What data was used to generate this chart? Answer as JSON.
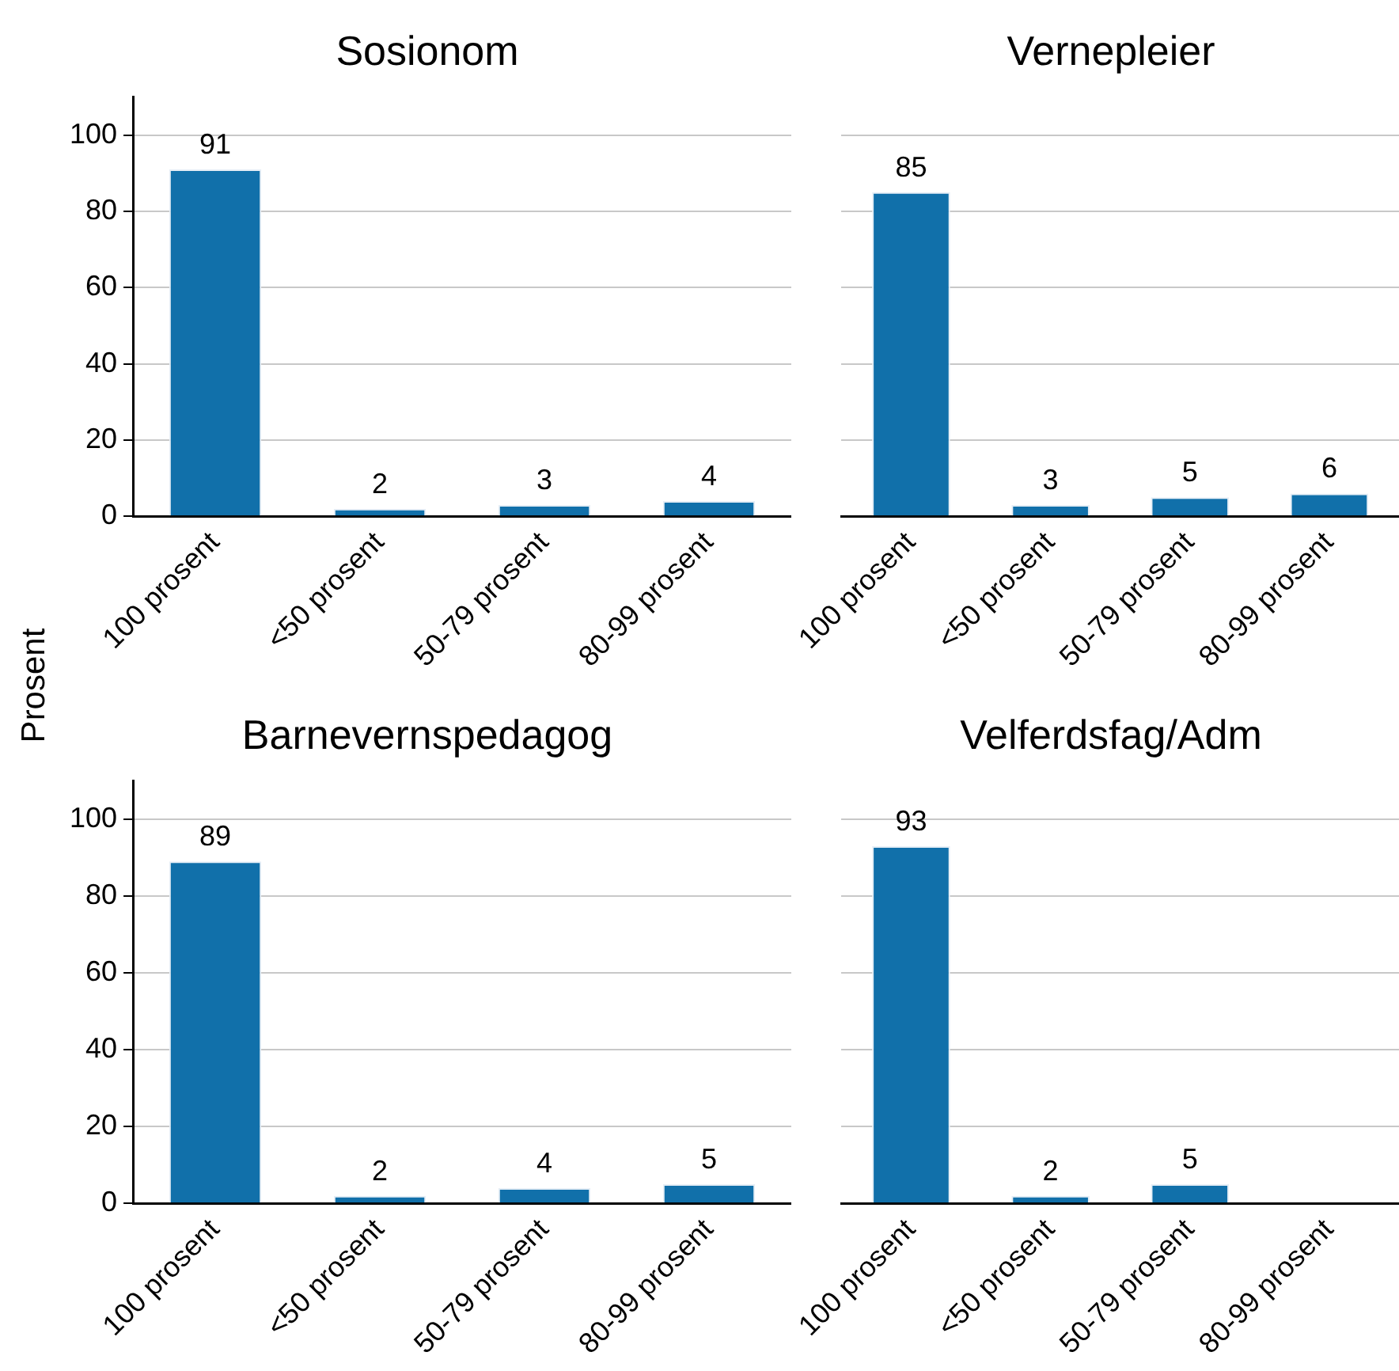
{
  "chart_data": [
    {
      "type": "bar",
      "title": "Sosionom",
      "ylabel": "Prosent",
      "categories": [
        "100 prosent",
        "<50 prosent",
        "50-79 prosent",
        "80-99 prosent"
      ],
      "values": [
        91,
        2,
        3,
        4
      ],
      "color": "#1170aa",
      "ylim": [
        0,
        110
      ],
      "yticks": [
        0,
        20,
        40,
        60,
        80,
        100
      ],
      "grid": "y",
      "data_labels": true
    },
    {
      "type": "bar",
      "title": "Vernepleier",
      "categories": [
        "100 prosent",
        "<50 prosent",
        "50-79 prosent",
        "80-99 prosent"
      ],
      "values": [
        85,
        3,
        5,
        6
      ],
      "color": "#1170aa",
      "yticks": [
        0,
        20,
        40,
        60,
        80,
        100
      ],
      "grid": "y",
      "data_labels": true,
      "tick_labels": "x"
    },
    {
      "type": "bar",
      "title": "Barnevernspedagog",
      "categories": [
        "100 prosent",
        "<50 prosent",
        "50-79 prosent",
        "80-99 prosent"
      ],
      "values": [
        89,
        2,
        4,
        5
      ],
      "color": "#1170aa",
      "ylim": [
        0,
        110
      ],
      "yticks": [
        0,
        20,
        40,
        60,
        80,
        100
      ],
      "grid": "y",
      "data_labels": true
    },
    {
      "type": "bar",
      "title": "Velferdsfag/Adm",
      "categories": [
        "100 prosent",
        "<50 prosent",
        "50-79 prosent",
        "80-99 prosent"
      ],
      "values": [
        93,
        2,
        5,
        null
      ],
      "color": "#1170aa",
      "yticks": [
        0,
        20,
        40,
        60,
        80,
        100
      ],
      "grid": "y",
      "data_labels": true,
      "tick_labels": "x"
    }
  ]
}
